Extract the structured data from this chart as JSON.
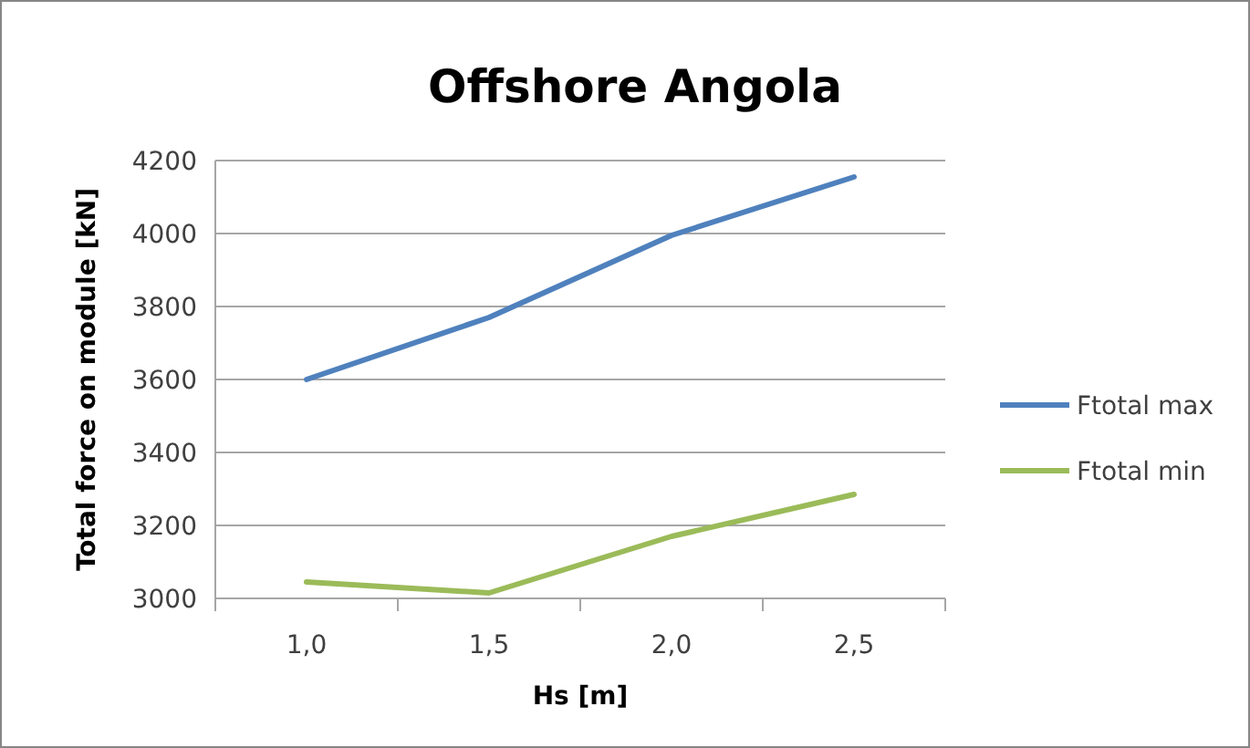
{
  "chart_data": {
    "type": "line",
    "title": "Offshore Angola",
    "xlabel": "Hs [m]",
    "ylabel": "Total force on module [kN]",
    "categories": [
      "1,0",
      "1,5",
      "2,0",
      "2,5"
    ],
    "series": [
      {
        "name": "Ftotal max",
        "color": "#4f81bd",
        "values": [
          3600,
          3770,
          3995,
          4155
        ]
      },
      {
        "name": "Ftotal min",
        "color": "#9bbb59",
        "values": [
          3045,
          3015,
          3170,
          3285
        ]
      }
    ],
    "ylim": [
      3000,
      4200
    ],
    "yticks": [
      3000,
      3200,
      3400,
      3600,
      3800,
      4000,
      4200
    ],
    "grid": "y",
    "legend": "right",
    "marker": "none",
    "line_style": "solid"
  }
}
